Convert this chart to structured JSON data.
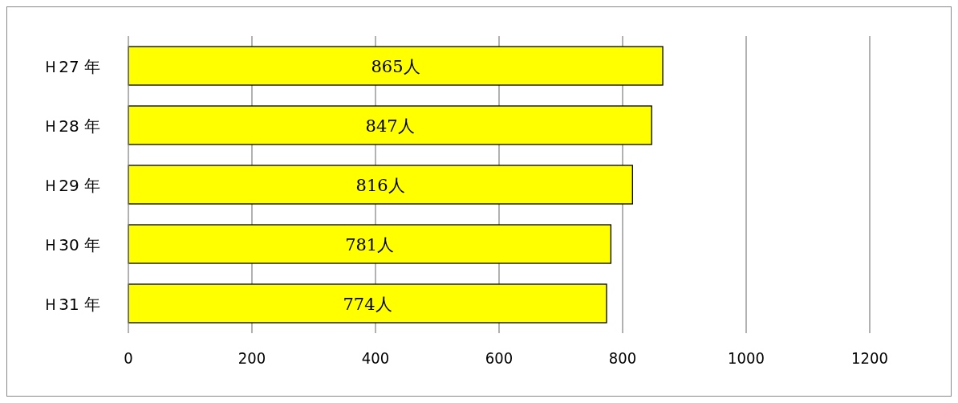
{
  "chart_data": {
    "type": "bar",
    "orientation": "horizontal",
    "categories": [
      "Ｈ27 年",
      "Ｈ28 年",
      "Ｈ29 年",
      "Ｈ30 年",
      "Ｈ31 年"
    ],
    "values": [
      865,
      847,
      816,
      781,
      774
    ],
    "value_labels": [
      "865人",
      "847人",
      "816人",
      "781人",
      "774人"
    ],
    "color": "#ffff00",
    "xlim": [
      0,
      1200
    ],
    "xticks": [
      0,
      200,
      400,
      600,
      800,
      1000,
      1200
    ],
    "grid": "x"
  }
}
